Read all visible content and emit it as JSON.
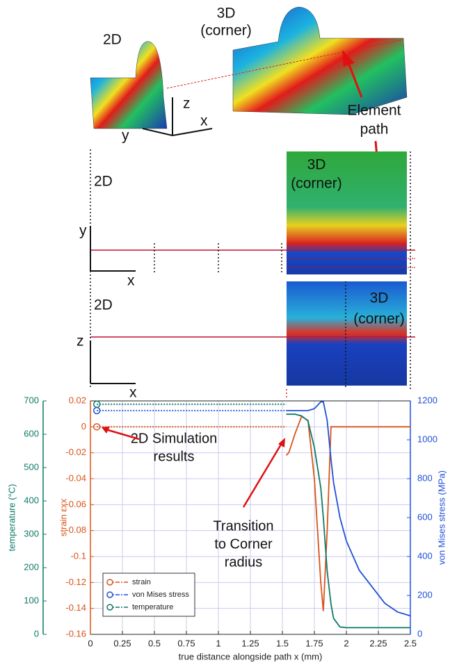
{
  "figure": {
    "top": {
      "label_2d": "2D",
      "label_3d": [
        "3D",
        "(corner)"
      ],
      "axes": [
        "z",
        "x",
        "y"
      ],
      "element_path": [
        "Element",
        "path"
      ]
    },
    "middle": {
      "label_2d": "2D",
      "label_3d": [
        "3D",
        "(corner)"
      ],
      "axes": [
        "y",
        "x"
      ]
    },
    "lower": {
      "label_2d": "2D",
      "label_3d": [
        "3D",
        "(corner)"
      ],
      "axes": [
        "z",
        "x"
      ]
    }
  },
  "chart_data": {
    "type": "line",
    "x_label": "true distance alongside path x (mm)",
    "y_label": "strain εxx",
    "y2_label": "von Mises stress (MPa)",
    "y3_label": "temperature (°C)",
    "xlim": [
      0,
      2.5
    ],
    "xticks": [
      0,
      0.25,
      0.5,
      0.75,
      1,
      1.25,
      1.5,
      1.75,
      2,
      2.25,
      2.5
    ],
    "ylim": [
      -0.16,
      0.02
    ],
    "yticks": [
      -0.16,
      -0.14,
      -0.12,
      -0.1,
      -0.08,
      -0.06,
      -0.04,
      -0.02,
      0,
      0.02
    ],
    "y2lim": [
      0,
      1200
    ],
    "y2ticks": [
      0,
      200,
      400,
      600,
      800,
      1000,
      1200
    ],
    "y3lim": [
      0,
      700
    ],
    "y3ticks": [
      0,
      100,
      200,
      300,
      400,
      500,
      600,
      700
    ],
    "grid": true,
    "legend": "lower left",
    "x": [
      1.53,
      1.55,
      1.6,
      1.65,
      1.7,
      1.75,
      1.8,
      1.82,
      1.85,
      1.88,
      1.9,
      1.95,
      2.0,
      2.1,
      2.2,
      2.3,
      2.4,
      2.5
    ],
    "x_2d": [
      0.05,
      1.53
    ],
    "series": [
      {
        "name": "strain",
        "color": "#d95319",
        "axis": "y",
        "values_2d": [
          0,
          0
        ],
        "values": [
          -0.022,
          -0.02,
          -0.005,
          0.008,
          0.005,
          -0.04,
          -0.12,
          -0.142,
          -0.08,
          0,
          0,
          0,
          0,
          0,
          0,
          0,
          0,
          0
        ]
      },
      {
        "name": "von Mises stress",
        "color": "#1f4fd8",
        "axis": "y2",
        "values_2d": [
          1150,
          1150
        ],
        "values": [
          1150,
          1150,
          1150,
          1150,
          1150,
          1160,
          1195,
          1195,
          1100,
          900,
          780,
          600,
          480,
          330,
          245,
          160,
          115,
          95
        ]
      },
      {
        "name": "temperature",
        "color": "#0d7a66",
        "axis": "y3",
        "values_2d": [
          690,
          690
        ],
        "values": [
          660,
          660,
          660,
          655,
          640,
          560,
          440,
          350,
          190,
          90,
          48,
          22,
          20,
          20,
          20,
          20,
          20,
          20
        ]
      }
    ],
    "annotations": [
      {
        "text": [
          "2D Simulation",
          "results"
        ]
      },
      {
        "text": [
          "Transition",
          "to Corner",
          "radius"
        ]
      }
    ]
  }
}
